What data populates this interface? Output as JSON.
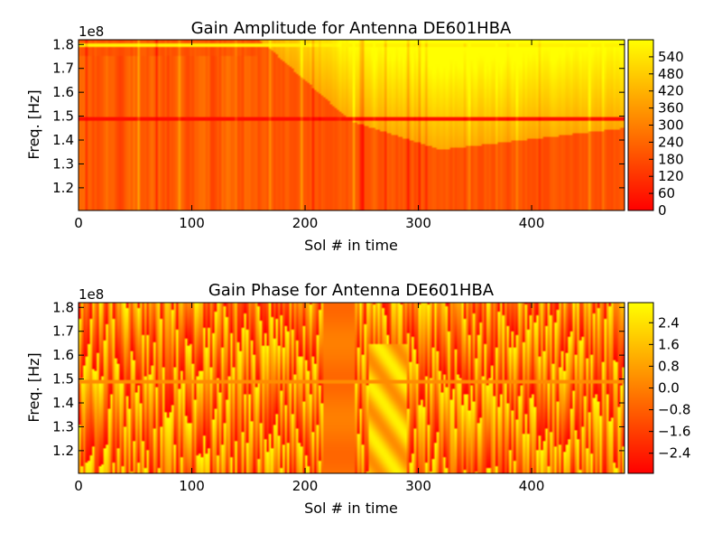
{
  "chart_data": [
    {
      "type": "heatmap",
      "title": "Gain Amplitude for Antenna DE601HBA",
      "xlabel": "Sol # in time",
      "ylabel": "Freq. [Hz]",
      "offset_label": "1e8",
      "xlim": [
        0,
        482
      ],
      "ylim": [
        1.105,
        1.82
      ],
      "x_ticks": [
        0,
        100,
        200,
        300,
        400
      ],
      "y_ticks": [
        1.2,
        1.3,
        1.4,
        1.5,
        1.6,
        1.7,
        1.8
      ],
      "colormap": "autumn",
      "colorbar": {
        "range": [
          0,
          600
        ],
        "ticks": [
          "0",
          "60",
          "120",
          "180",
          "240",
          "300",
          "360",
          "420",
          "480",
          "540"
        ]
      },
      "features": {
        "bright_band_freq": 1.795,
        "dark_band_freq": 1.49,
        "diagonal_edge": [
          [
            160,
            1.82
          ],
          [
            240,
            1.48
          ],
          [
            320,
            1.36
          ],
          [
            482,
            1.45
          ]
        ]
      }
    },
    {
      "type": "heatmap",
      "title": "Gain Phase for Antenna DE601HBA",
      "xlabel": "Sol # in time",
      "ylabel": "Freq. [Hz]",
      "offset_label": "1e8",
      "xlim": [
        0,
        482
      ],
      "ylim": [
        1.105,
        1.82
      ],
      "x_ticks": [
        0,
        100,
        200,
        300,
        400
      ],
      "y_ticks": [
        1.2,
        1.3,
        1.4,
        1.5,
        1.6,
        1.7,
        1.8
      ],
      "colormap": "autumn",
      "colorbar": {
        "range": [
          -3.14,
          3.14
        ],
        "ticks": [
          "2.4",
          "1.6",
          "0.8",
          "0.0",
          "−0.8",
          "−1.6",
          "−2.4"
        ]
      },
      "features": {
        "band_freq": 1.49,
        "dark_block": [
          215,
          245
        ],
        "bright_block": [
          255,
          290
        ]
      }
    }
  ],
  "colors": {
    "red": "#ff0000",
    "orange": "#ff8000",
    "yellow": "#ffff00",
    "axis": "#000000"
  }
}
